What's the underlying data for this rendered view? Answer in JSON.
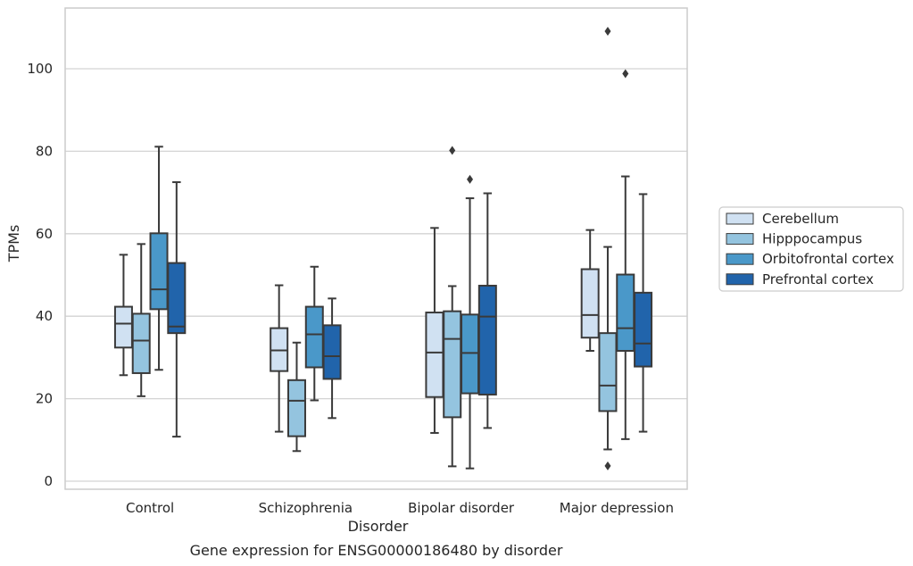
{
  "chart_data": {
    "type": "box",
    "title": "Gene expression for ENSG00000186480 by disorder",
    "xlabel": "Disorder",
    "ylabel": "TPMs",
    "ylim": [
      -2,
      115
    ],
    "yticks": [
      0,
      20,
      40,
      60,
      80,
      100
    ],
    "grid": "horizontal",
    "legend_position": "right",
    "categories": [
      "Control",
      "Schizophrenia",
      "Bipolar disorder",
      "Major depression"
    ],
    "series": [
      {
        "name": "Cerebellum",
        "color": "#d0e1f2",
        "boxes": [
          {
            "whislo": 25.7,
            "q1": 32.4,
            "med": 38.2,
            "q3": 42.3,
            "whishi": 54.9,
            "fliers": []
          },
          {
            "whislo": 12.0,
            "q1": 26.7,
            "med": 31.7,
            "q3": 37.1,
            "whishi": 47.5,
            "fliers": []
          },
          {
            "whislo": 11.7,
            "q1": 20.4,
            "med": 31.2,
            "q3": 40.9,
            "whishi": 61.4,
            "fliers": []
          },
          {
            "whislo": 31.6,
            "q1": 34.8,
            "med": 40.3,
            "q3": 51.4,
            "whishi": 60.9,
            "fliers": []
          }
        ]
      },
      {
        "name": "Hipppocampus",
        "color": "#94c4df",
        "boxes": [
          {
            "whislo": 20.6,
            "q1": 26.2,
            "med": 34.1,
            "q3": 40.6,
            "whishi": 57.5,
            "fliers": []
          },
          {
            "whislo": 7.3,
            "q1": 10.9,
            "med": 19.5,
            "q3": 24.5,
            "whishi": 33.6,
            "fliers": []
          },
          {
            "whislo": 3.6,
            "q1": 15.5,
            "med": 34.5,
            "q3": 41.2,
            "whishi": 47.3,
            "fliers": [
              80.2
            ]
          },
          {
            "whislo": 7.7,
            "q1": 17.0,
            "med": 23.2,
            "q3": 35.9,
            "whishi": 56.8,
            "fliers": [
              109.1,
              3.7
            ]
          }
        ]
      },
      {
        "name": "Orbitofrontal cortex",
        "color": "#4a98c9",
        "boxes": [
          {
            "whislo": 27.0,
            "q1": 41.7,
            "med": 46.5,
            "q3": 60.1,
            "whishi": 81.1,
            "fliers": []
          },
          {
            "whislo": 19.6,
            "q1": 27.6,
            "med": 35.6,
            "q3": 42.3,
            "whishi": 52.0,
            "fliers": []
          },
          {
            "whislo": 3.1,
            "q1": 21.3,
            "med": 31.1,
            "q3": 40.4,
            "whishi": 68.6,
            "fliers": [
              73.2
            ]
          },
          {
            "whislo": 10.2,
            "q1": 31.6,
            "med": 37.1,
            "q3": 50.1,
            "whishi": 73.9,
            "fliers": [
              98.8
            ]
          }
        ]
      },
      {
        "name": "Prefrontal cortex",
        "color": "#2164ab",
        "boxes": [
          {
            "whislo": 10.8,
            "q1": 35.9,
            "med": 37.5,
            "q3": 52.9,
            "whishi": 72.5,
            "fliers": []
          },
          {
            "whislo": 15.3,
            "q1": 24.8,
            "med": 30.3,
            "q3": 37.8,
            "whishi": 44.3,
            "fliers": []
          },
          {
            "whislo": 12.9,
            "q1": 21.0,
            "med": 39.9,
            "q3": 47.4,
            "whishi": 69.8,
            "fliers": []
          },
          {
            "whislo": 12.0,
            "q1": 27.8,
            "med": 33.4,
            "q3": 45.7,
            "whishi": 69.6,
            "fliers": []
          }
        ]
      }
    ]
  }
}
